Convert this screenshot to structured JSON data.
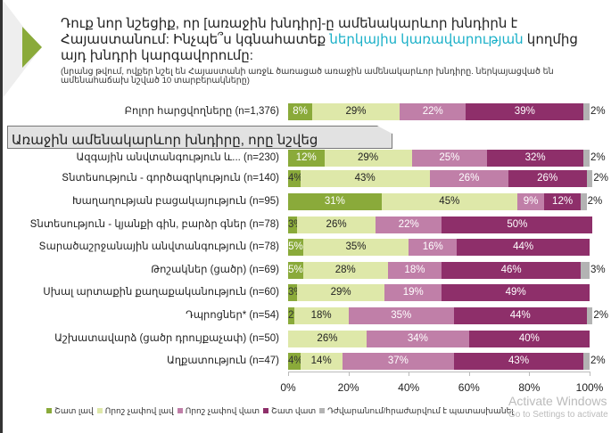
{
  "title_part1": "Դուք նոր նշեցիք, որ [առաջին խնդիր]-ը ամենակարևոր խնդիրն է Հայաստանում: Ինչպե՞ս կգնահատեք ",
  "title_highlight": "ներկայիս կառավարության",
  "title_part2": " կողմից այդ խնդրի կարգավորումը:",
  "subtitle": "(նրանց թվում, ովքեր նշել են Հայաստանի առջև ծառացած առաջին ամենակարևոր խնդիրը. ներկայացված են ամենահաճախ նշված 10 տարբերակները)",
  "section_header": "Առաջին ամենակարևոր խնդիրը, որը նշվեց",
  "watermark": {
    "line1": "Activate Windows",
    "line2": "Go to Settings to activate"
  },
  "chart_data": {
    "type": "bar",
    "orientation": "horizontal",
    "stacked": true,
    "xlim": [
      0,
      100
    ],
    "x_ticks": [
      "0%",
      "20%",
      "40%",
      "60%",
      "80%",
      "100%"
    ],
    "legend_position": "bottom",
    "categories": [
      "Բոլոր հարցվողները (n=1,376)",
      "Ազգային անվտանգություն և... (n=230)",
      "Տնտեսություն - գործազրկություն (n=140)",
      "Խաղաղության բացակայություն (n=95)",
      "Տնտեսություն - կյանքի գին, բարձր գներ (n=78)",
      "Տարածաշրջանային անվտանգություն (n=78)",
      "Թոշակներ (ցածր) (n=69)",
      "Սխալ արտաքին քաղաքականություն (n=60)",
      "Դպրոցներ* (n=54)",
      "Աշխատավարձ (ցածր դրույքաչափ) (n=50)",
      "Աղքատություն (n=47)"
    ],
    "series": [
      {
        "name": "Շատ լավ",
        "color": "#8aaa3a",
        "text_color": "#ffffff",
        "values": [
          8,
          12,
          4,
          31,
          3,
          5,
          5,
          3,
          2,
          0,
          4
        ]
      },
      {
        "name": "Որոշ չափով լավ",
        "color": "#dee8a9",
        "text_color": "#222222",
        "values": [
          29,
          29,
          43,
          45,
          26,
          35,
          28,
          29,
          18,
          26,
          14
        ]
      },
      {
        "name": "Որոշ չափով վատ",
        "color": "#c07fa8",
        "text_color": "#ffffff",
        "values": [
          22,
          25,
          26,
          9,
          22,
          16,
          18,
          19,
          35,
          34,
          37
        ]
      },
      {
        "name": "Շատ վատ",
        "color": "#8e2f6a",
        "text_color": "#ffffff",
        "values": [
          39,
          32,
          26,
          12,
          50,
          44,
          46,
          49,
          44,
          40,
          43
        ]
      },
      {
        "name": "Դժվարանում/հրաժարվում է պատասխանել",
        "color": "#b3b3b3",
        "text_color": "#222222",
        "values": [
          2,
          2,
          2,
          2,
          0,
          0,
          3,
          0,
          2,
          0,
          2
        ]
      }
    ]
  }
}
